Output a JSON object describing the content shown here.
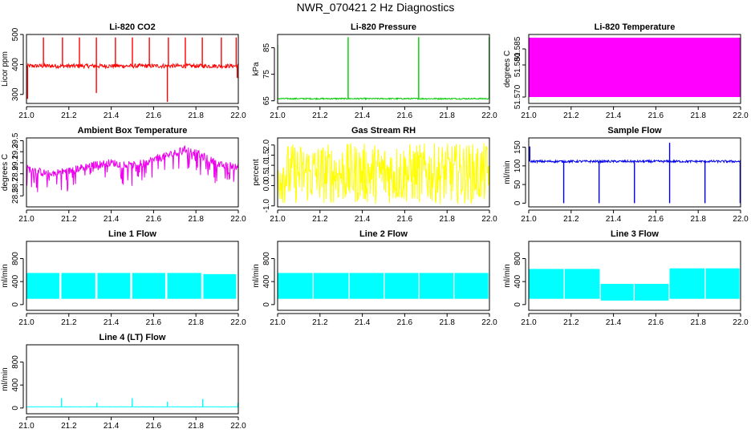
{
  "figure": {
    "title": "NWR_070421 2 Hz Diagnostics"
  },
  "chart_data": [
    {
      "id": "co2",
      "type": "line",
      "title": "Li-820 CO2",
      "ylabel": "Licor ppm",
      "xlim": [
        21.0,
        22.0
      ],
      "xticks": [
        21.0,
        21.2,
        21.4,
        21.6,
        21.8,
        22.0
      ],
      "ylim": [
        270,
        500
      ],
      "yticks": [
        300,
        400,
        500
      ],
      "ytick_labels": [
        "300",
        "400",
        "500"
      ],
      "color": "#ff0000",
      "series": [
        {
          "baseline": 395,
          "noise": 7,
          "up_spikes": [
            [
              21.08,
              490
            ],
            [
              21.17,
              490
            ],
            [
              21.25,
              490
            ],
            [
              21.33,
              490
            ],
            [
              21.42,
              490
            ],
            [
              21.5,
              490
            ],
            [
              21.58,
              490
            ],
            [
              21.67,
              490
            ],
            [
              21.75,
              490
            ],
            [
              21.83,
              490
            ],
            [
              21.92,
              490
            ],
            [
              21.99,
              490
            ]
          ],
          "down_spikes": [
            [
              21.005,
              285
            ],
            [
              21.33,
              305
            ],
            [
              21.665,
              275
            ],
            [
              21.995,
              355
            ]
          ]
        }
      ]
    },
    {
      "id": "pressure",
      "type": "line",
      "title": "Li-820 Pressure",
      "ylabel": "kPa",
      "xlim": [
        21.0,
        22.0
      ],
      "xticks": [
        21.0,
        21.2,
        21.4,
        21.6,
        21.8,
        22.0
      ],
      "ylim": [
        64,
        90
      ],
      "yticks": [
        65,
        75,
        85
      ],
      "ytick_labels": [
        "65",
        "75",
        "85"
      ],
      "color": "#00cc00",
      "series": [
        {
          "baseline": 65.8,
          "noise": 0.25,
          "up_spikes": [
            [
              21.0,
              86
            ],
            [
              21.333,
              89
            ],
            [
              21.666,
              89
            ],
            [
              21.999,
              89
            ]
          ]
        }
      ]
    },
    {
      "id": "licor_temp",
      "type": "area",
      "title": "Li-820 Temperature",
      "ylabel": "degrees C",
      "xlim": [
        21.0,
        22.0
      ],
      "xticks": [
        21.0,
        21.2,
        21.4,
        21.6,
        21.8,
        22.0
      ],
      "ylim": [
        51.568,
        51.5895
      ],
      "yticks": [
        51.57,
        51.58,
        51.585
      ],
      "ytick_labels": [
        "51.570",
        "51.580",
        "51.585"
      ],
      "color": "#ff00ff",
      "series": [
        {
          "band": [
            51.57,
            51.5885
          ]
        }
      ]
    },
    {
      "id": "box_temp",
      "type": "line",
      "title": "Ambient Box Temperature",
      "ylabel": "degrees C",
      "xlim": [
        21.0,
        22.0
      ],
      "xticks": [
        21.0,
        21.2,
        21.4,
        21.6,
        21.8,
        22.0
      ],
      "ylim": [
        28.3,
        29.55
      ],
      "yticks": [
        28.5,
        28.7,
        28.9,
        29.1,
        29.3,
        29.5
      ],
      "ytick_labels": [
        "28.5",
        "28.7",
        "28.9",
        "29.1",
        "29.3",
        "29.5"
      ],
      "color": "#ee00ee",
      "series": [
        {
          "profile": [
            [
              21.0,
              29.0
            ],
            [
              21.1,
              28.9
            ],
            [
              21.2,
              28.95
            ],
            [
              21.3,
              29.05
            ],
            [
              21.4,
              29.1
            ],
            [
              21.5,
              29.05
            ],
            [
              21.6,
              29.15
            ],
            [
              21.68,
              29.25
            ],
            [
              21.76,
              29.35
            ],
            [
              21.84,
              29.2
            ],
            [
              21.92,
              29.05
            ],
            [
              22.0,
              29.05
            ]
          ],
          "noise": 0.07,
          "drop_depth": 0.35
        }
      ]
    },
    {
      "id": "rh",
      "type": "line",
      "title": "Gas Stream RH",
      "ylabel": "percent",
      "xlim": [
        21.0,
        22.0
      ],
      "xticks": [
        21.0,
        21.2,
        21.4,
        21.6,
        21.8,
        22.0
      ],
      "ylim": [
        -1.05,
        2.35
      ],
      "yticks": [
        -1.0,
        0.0,
        0.5,
        1.0,
        1.5,
        2.0
      ],
      "ytick_labels": [
        "-1.0",
        "0.0",
        "0.5",
        "1.0",
        "1.5",
        "2.0"
      ],
      "color": "#ffff00",
      "series": [
        {
          "baseline": 0.6,
          "noise": 1.5
        }
      ]
    },
    {
      "id": "sample_flow",
      "type": "line",
      "title": "Sample Flow",
      "ylabel": "ml/min",
      "xlim": [
        21.0,
        22.0
      ],
      "xticks": [
        21.0,
        21.2,
        21.4,
        21.6,
        21.8,
        22.0
      ],
      "ylim": [
        -10,
        175
      ],
      "yticks": [
        0,
        50,
        100,
        150
      ],
      "ytick_labels": [
        "0",
        "50",
        "100",
        "150"
      ],
      "color": "#0000ee",
      "series": [
        {
          "baseline": 112,
          "noise": 3,
          "down_spikes": [
            [
              21.165,
              0
            ],
            [
              21.332,
              0
            ],
            [
              21.499,
              0
            ],
            [
              21.665,
              0
            ],
            [
              21.832,
              0
            ],
            [
              21.998,
              0
            ]
          ],
          "up_spikes": [
            [
              21.005,
              152
            ],
            [
              21.665,
              162
            ]
          ]
        }
      ]
    },
    {
      "id": "line1",
      "type": "area",
      "title": "Line 1 Flow",
      "ylabel": "ml/min",
      "xlim": [
        21.0,
        22.0
      ],
      "xticks": [
        21.0,
        21.2,
        21.4,
        21.6,
        21.8,
        22.0
      ],
      "ylim": [
        -100,
        1100
      ],
      "yticks": [
        0,
        400,
        800
      ],
      "ytick_labels": [
        "0",
        "400",
        "800"
      ],
      "color": "#00ffff",
      "series": [
        {
          "segments": [
            [
              21.0,
              21.155,
              100,
              550
            ],
            [
              21.165,
              21.325,
              100,
              550
            ],
            [
              21.335,
              21.49,
              100,
              550
            ],
            [
              21.5,
              21.655,
              100,
              550
            ],
            [
              21.665,
              21.825,
              100,
              550
            ],
            [
              21.835,
              21.99,
              100,
              530
            ]
          ]
        }
      ]
    },
    {
      "id": "line2",
      "type": "area",
      "title": "Line 2 Flow",
      "ylabel": "ml/min",
      "xlim": [
        21.0,
        22.0
      ],
      "xticks": [
        21.0,
        21.2,
        21.4,
        21.6,
        21.8,
        22.0
      ],
      "ylim": [
        -100,
        1100
      ],
      "yticks": [
        0,
        400,
        800
      ],
      "ytick_labels": [
        "0",
        "400",
        "800"
      ],
      "color": "#00ffff",
      "series": [
        {
          "segments": [
            [
              21.0,
              21.165,
              100,
              550
            ],
            [
              21.17,
              21.335,
              100,
              550
            ],
            [
              21.34,
              21.5,
              100,
              550
            ],
            [
              21.505,
              21.665,
              100,
              550
            ],
            [
              21.67,
              21.83,
              100,
              550
            ],
            [
              21.835,
              21.995,
              100,
              550
            ]
          ]
        }
      ]
    },
    {
      "id": "line3",
      "type": "area",
      "title": "Line 3 Flow",
      "ylabel": "ml/min",
      "xlim": [
        21.0,
        22.0
      ],
      "xticks": [
        21.0,
        21.2,
        21.4,
        21.6,
        21.8,
        22.0
      ],
      "ylim": [
        -100,
        1100
      ],
      "yticks": [
        0,
        400,
        800
      ],
      "ytick_labels": [
        "0",
        "400",
        "800"
      ],
      "color": "#00ffff",
      "series": [
        {
          "segments": [
            [
              21.0,
              21.165,
              100,
              620
            ],
            [
              21.17,
              21.335,
              100,
              620
            ],
            [
              21.34,
              21.495,
              70,
              360
            ],
            [
              21.5,
              21.66,
              70,
              360
            ],
            [
              21.665,
              21.83,
              100,
              630
            ],
            [
              21.835,
              21.995,
              100,
              630
            ]
          ]
        }
      ]
    },
    {
      "id": "line4",
      "type": "line",
      "title": "Line 4 (LT) Flow",
      "ylabel": "ml/min",
      "xlim": [
        21.0,
        22.0
      ],
      "xticks": [
        21.0,
        21.2,
        21.4,
        21.6,
        21.8,
        22.0
      ],
      "ylim": [
        -100,
        1100
      ],
      "yticks": [
        0,
        400,
        800
      ],
      "ytick_labels": [
        "0",
        "400",
        "800"
      ],
      "color": "#00ffff",
      "series": [
        {
          "baseline": 20,
          "noise": 3,
          "up_spikes": [
            [
              21.165,
              170
            ],
            [
              21.332,
              90
            ],
            [
              21.499,
              170
            ],
            [
              21.665,
              110
            ],
            [
              21.832,
              160
            ],
            [
              21.998,
              90
            ]
          ]
        }
      ]
    }
  ]
}
